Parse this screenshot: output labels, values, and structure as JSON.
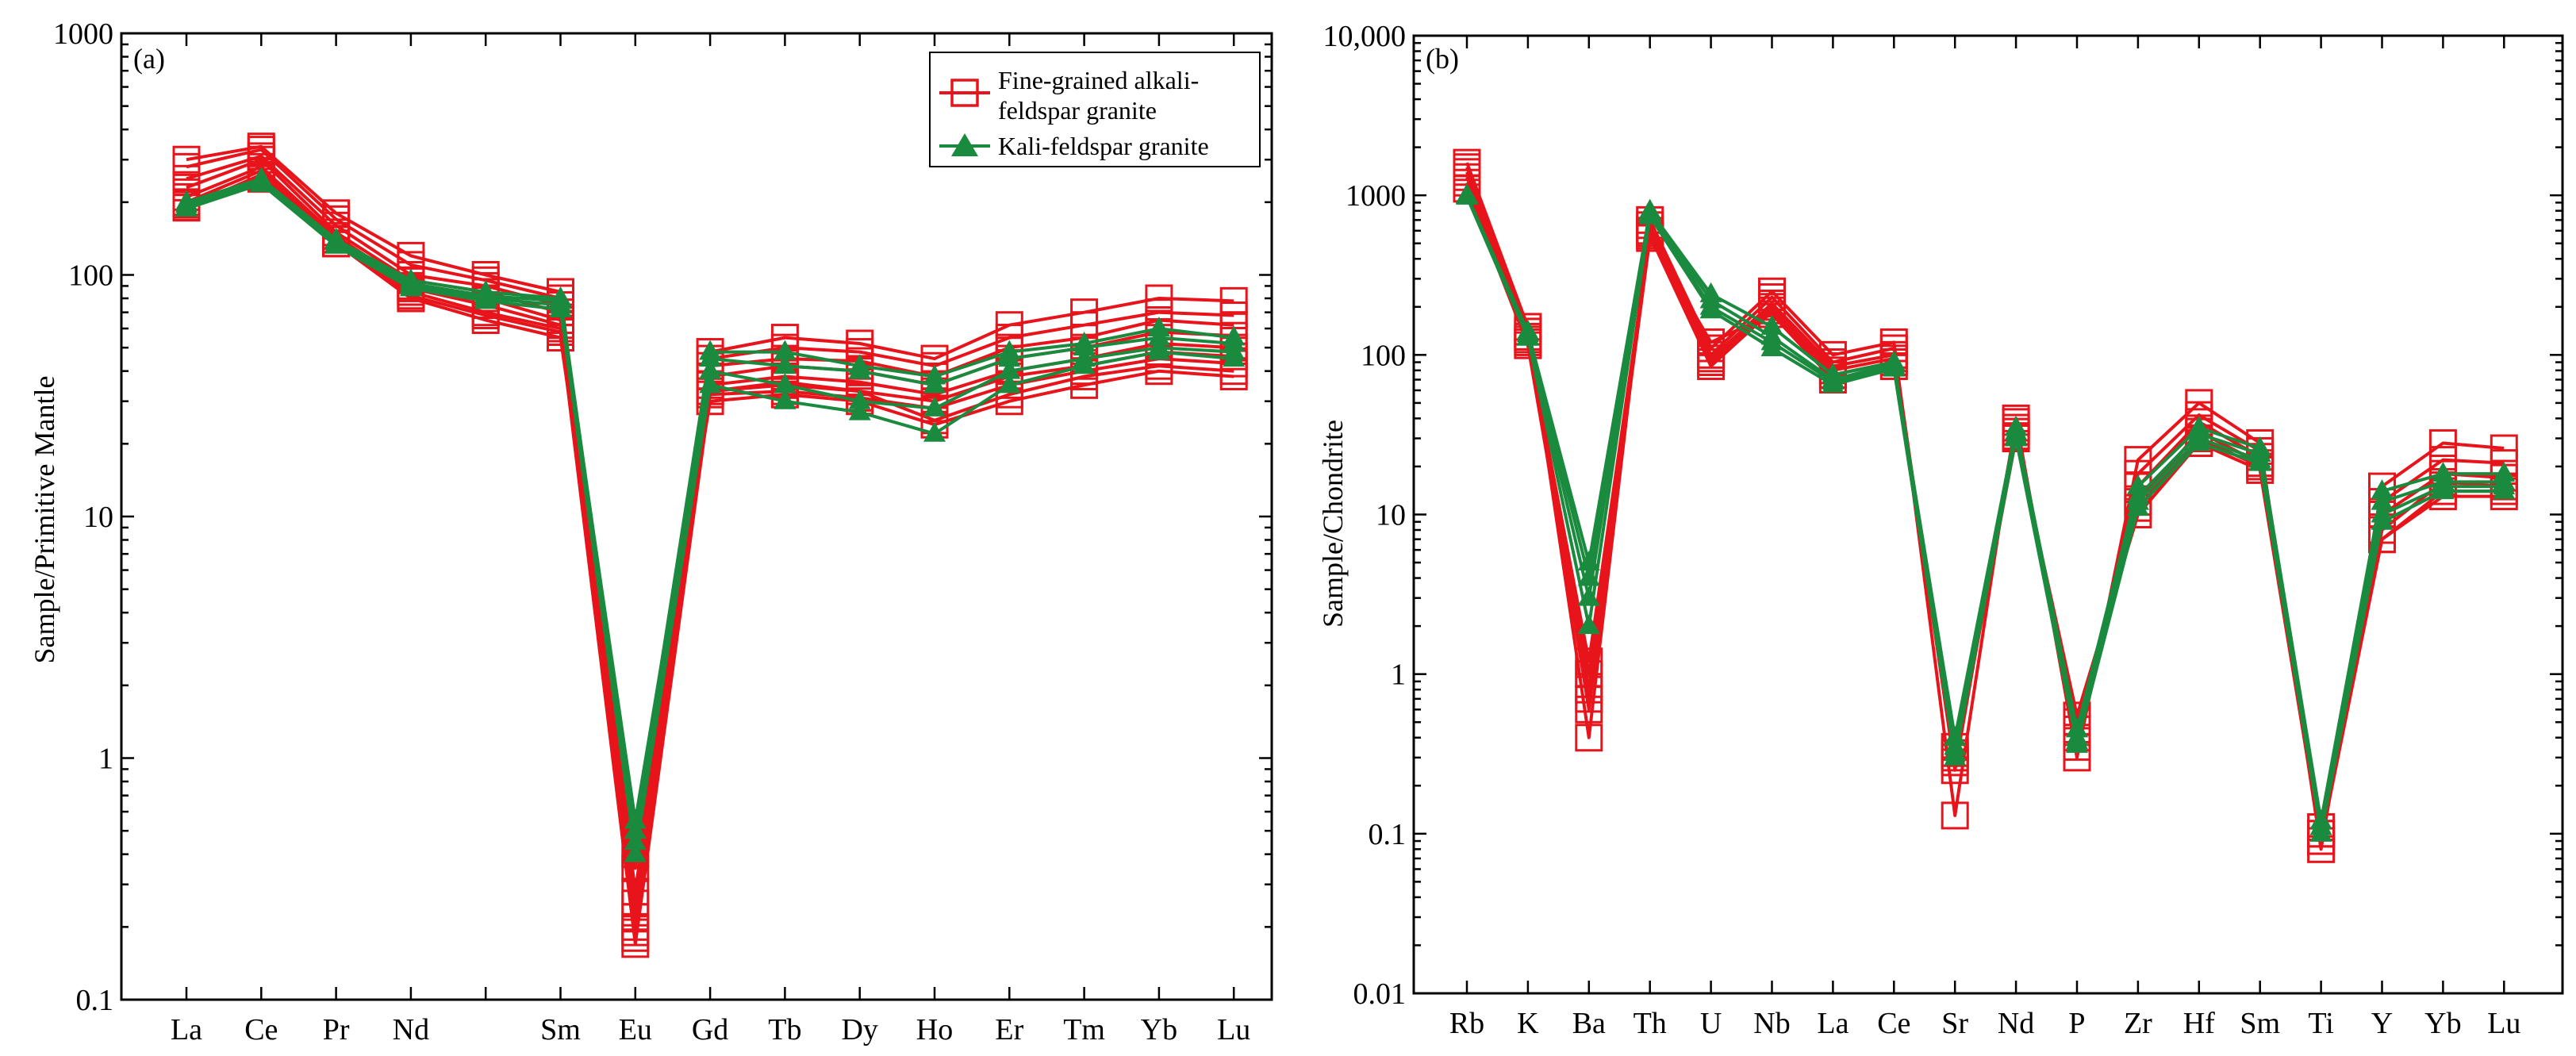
{
  "colors": {
    "fine_grained": "#e8141b",
    "kali": "#1a8a3e",
    "axis": "#000000"
  },
  "legend": {
    "fine_grained_line1": "Fine-grained alkali-",
    "fine_grained_line2": "feldspar granite",
    "kali": "Kali-feldspar granite"
  },
  "chart_data": [
    {
      "type": "line",
      "panel_label": "(a)",
      "title": "",
      "xlabel": "",
      "ylabel": "Sample/Primitive Mantle",
      "yscale": "log",
      "ylim": [
        0.1,
        1000
      ],
      "y_tick_labels": [
        "0.1",
        "1",
        "10",
        "100",
        "1000"
      ],
      "categories": [
        "La",
        "Ce",
        "Pr",
        "Nd",
        "",
        "Sm",
        "Eu",
        "Gd",
        "Tb",
        "Dy",
        "Ho",
        "Er",
        "Tm",
        "Yb",
        "Lu"
      ],
      "legend_position": "top-right",
      "series": [
        {
          "name": "Fine-grained alkali-feldspar granite",
          "values": [
            300,
            340,
            180,
            120,
            100,
            85,
            0.28,
            48,
            55,
            52,
            45,
            62,
            70,
            80,
            78
          ]
        },
        {
          "name": "Fine-grained alkali-feldspar granite",
          "values": [
            280,
            330,
            170,
            110,
            95,
            80,
            0.25,
            45,
            50,
            48,
            42,
            55,
            62,
            70,
            68
          ]
        },
        {
          "name": "Fine-grained alkali-feldspar granite",
          "values": [
            250,
            310,
            160,
            100,
            90,
            75,
            0.22,
            42,
            45,
            44,
            38,
            50,
            55,
            65,
            62
          ]
        },
        {
          "name": "Fine-grained alkali-feldspar granite",
          "values": [
            230,
            300,
            150,
            95,
            85,
            70,
            0.2,
            38,
            42,
            40,
            35,
            45,
            50,
            58,
            56
          ]
        },
        {
          "name": "Fine-grained alkali-feldspar granite",
          "values": [
            210,
            280,
            145,
            90,
            80,
            65,
            0.19,
            35,
            38,
            36,
            32,
            40,
            45,
            52,
            50
          ]
        },
        {
          "name": "Fine-grained alkali-feldspar granite",
          "values": [
            200,
            270,
            140,
            88,
            75,
            62,
            0.18,
            33,
            35,
            33,
            30,
            38,
            42,
            48,
            46
          ]
        },
        {
          "name": "Fine-grained alkali-feldspar granite",
          "values": [
            190,
            260,
            140,
            85,
            70,
            60,
            0.17,
            32,
            33,
            31,
            28,
            35,
            40,
            45,
            43
          ]
        },
        {
          "name": "Fine-grained alkali-feldspar granite",
          "values": [
            190,
            255,
            135,
            82,
            68,
            58,
            0.35,
            33,
            36,
            33,
            25,
            32,
            38,
            42,
            40
          ]
        },
        {
          "name": "Fine-grained alkali-feldspar granite",
          "values": [
            195,
            250,
            135,
            80,
            65,
            55,
            0.4,
            30,
            32,
            30,
            24,
            30,
            35,
            40,
            38
          ]
        },
        {
          "name": "Kali-feldspar granite",
          "values": [
            200,
            250,
            140,
            95,
            85,
            80,
            0.5,
            48,
            48,
            42,
            38,
            48,
            52,
            60,
            55
          ]
        },
        {
          "name": "Kali-feldspar granite",
          "values": [
            195,
            245,
            138,
            92,
            82,
            78,
            0.45,
            45,
            42,
            40,
            35,
            45,
            50,
            55,
            52
          ]
        },
        {
          "name": "Kali-feldspar granite",
          "values": [
            190,
            240,
            135,
            90,
            80,
            75,
            0.55,
            40,
            35,
            30,
            28,
            40,
            45,
            50,
            48
          ]
        },
        {
          "name": "Kali-feldspar granite",
          "values": [
            188,
            238,
            132,
            88,
            78,
            72,
            0.4,
            35,
            30,
            27,
            22,
            35,
            42,
            48,
            45
          ]
        }
      ]
    },
    {
      "type": "line",
      "panel_label": "(b)",
      "title": "",
      "xlabel": "",
      "ylabel": "Sample/Chondrite",
      "yscale": "log",
      "ylim": [
        0.01,
        10000
      ],
      "y_tick_labels": [
        "0.01",
        "0.1",
        "1",
        "10",
        "100",
        "1000",
        "10,000"
      ],
      "categories": [
        "Rb",
        "K",
        "Ba",
        "Th",
        "U",
        "Nb",
        "La",
        "Ce",
        "Sr",
        "Nd",
        "P",
        "Zr",
        "Hf",
        "Sm",
        "Ti",
        "Y",
        "Yb",
        "Lu"
      ],
      "series": [
        {
          "name": "Fine-grained alkali-feldspar granite",
          "values": [
            1600,
            150,
            0.4,
            700,
            110,
            250,
            100,
            120,
            0.13,
            40,
            0.3,
            22,
            50,
            28,
            0.08,
            15,
            28,
            26
          ]
        },
        {
          "name": "Fine-grained alkali-feldspar granite",
          "values": [
            1500,
            140,
            0.6,
            650,
            100,
            230,
            90,
            110,
            0.25,
            38,
            0.35,
            18,
            42,
            25,
            0.09,
            12,
            22,
            21
          ]
        },
        {
          "name": "Fine-grained alkali-feldspar granite",
          "values": [
            1400,
            130,
            0.8,
            600,
            95,
            210,
            85,
            100,
            0.3,
            35,
            0.4,
            15,
            38,
            23,
            0.1,
            10,
            18,
            17
          ]
        },
        {
          "name": "Fine-grained alkali-feldspar granite",
          "values": [
            1300,
            125,
            1.0,
            580,
            90,
            200,
            80,
            95,
            0.32,
            33,
            0.45,
            12,
            33,
            21,
            0.1,
            8,
            16,
            15
          ]
        },
        {
          "name": "Fine-grained alkali-feldspar granite",
          "values": [
            1200,
            120,
            1.2,
            560,
            85,
            190,
            75,
            90,
            0.35,
            31,
            0.5,
            11,
            30,
            20,
            0.11,
            7,
            14,
            14
          ]
        },
        {
          "name": "Fine-grained alkali-feldspar granite",
          "values": [
            1100,
            115,
            0.7,
            540,
            120,
            180,
            70,
            85,
            0.28,
            30,
            0.55,
            10,
            28,
            19,
            0.09,
            7,
            13,
            13
          ]
        },
        {
          "name": "Kali-feldspar granite",
          "values": [
            1000,
            140,
            5.0,
            800,
            240,
            150,
            75,
            90,
            0.4,
            35,
            0.45,
            15,
            35,
            26,
            0.12,
            14,
            18,
            18
          ]
        },
        {
          "name": "Kali-feldspar granite",
          "values": [
            1000,
            135,
            4.0,
            780,
            220,
            130,
            70,
            88,
            0.35,
            33,
            0.4,
            13,
            32,
            24,
            0.11,
            12,
            16,
            16
          ]
        },
        {
          "name": "Kali-feldspar granite",
          "values": [
            990,
            130,
            3.0,
            760,
            200,
            120,
            68,
            85,
            0.32,
            31,
            0.38,
            12,
            30,
            22,
            0.11,
            10,
            15,
            15
          ]
        },
        {
          "name": "Kali-feldspar granite",
          "values": [
            980,
            128,
            2.0,
            740,
            190,
            110,
            65,
            82,
            0.3,
            30,
            0.36,
            11,
            28,
            21,
            0.1,
            9,
            14,
            14
          ]
        }
      ]
    }
  ]
}
